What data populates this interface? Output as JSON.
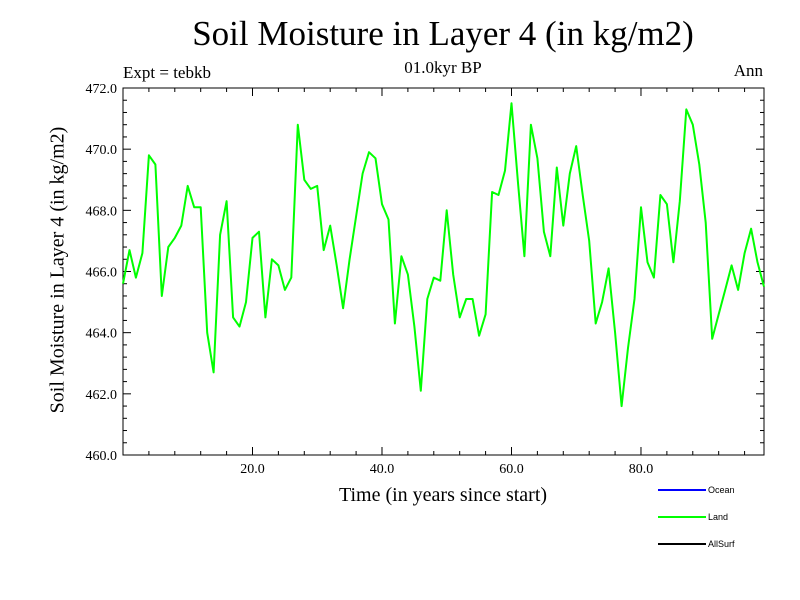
{
  "chart_data": {
    "type": "line",
    "title": "Soil Moisture in Layer 4 (in kg/m2)",
    "subtitle": "01.0kyr BP",
    "expt_label": "Expt = tebkb",
    "season_label": "Ann",
    "xlabel": "Time (in years since start)",
    "ylabel": "Soil Moisture in Layer 4 (in kg/m2)",
    "xlim": [
      0,
      99
    ],
    "ylim": [
      460.0,
      472.0
    ],
    "xticks": [
      20,
      40,
      60,
      80
    ],
    "xtick_labels": [
      "20.0",
      "40.0",
      "60.0",
      "80.0"
    ],
    "yticks": [
      460,
      462,
      464,
      466,
      468,
      470,
      472
    ],
    "ytick_labels": [
      "460.0",
      "462.0",
      "464.0",
      "466.0",
      "468.0",
      "470.0",
      "472.0"
    ],
    "legend": [
      {
        "name": "Ocean",
        "color": "#0000ff"
      },
      {
        "name": "Land",
        "color": "#00ff00"
      },
      {
        "name": "AllSurf",
        "color": "#000000"
      }
    ],
    "series": [
      {
        "name": "Land",
        "color": "#00ff00",
        "x": [
          0,
          1,
          2,
          3,
          4,
          5,
          6,
          7,
          8,
          9,
          10,
          11,
          12,
          13,
          14,
          15,
          16,
          17,
          18,
          19,
          20,
          21,
          22,
          23,
          24,
          25,
          26,
          27,
          28,
          29,
          30,
          31,
          32,
          33,
          34,
          35,
          36,
          37,
          38,
          39,
          40,
          41,
          42,
          43,
          44,
          45,
          46,
          47,
          48,
          49,
          50,
          51,
          52,
          53,
          54,
          55,
          56,
          57,
          58,
          59,
          60,
          61,
          62,
          63,
          64,
          65,
          66,
          67,
          68,
          69,
          70,
          71,
          72,
          73,
          74,
          75,
          76,
          77,
          78,
          79,
          80,
          81,
          82,
          83,
          84,
          85,
          86,
          87,
          88,
          89,
          90,
          91,
          92,
          93,
          94,
          95,
          96,
          97,
          98,
          99
        ],
        "values": [
          465.6,
          466.7,
          465.8,
          466.6,
          469.8,
          469.5,
          465.2,
          466.8,
          467.1,
          467.5,
          468.8,
          468.1,
          468.1,
          464.0,
          462.7,
          467.2,
          468.3,
          464.5,
          464.2,
          465.0,
          467.1,
          467.3,
          464.5,
          466.4,
          466.2,
          465.4,
          465.8,
          470.8,
          469.0,
          468.7,
          468.8,
          466.7,
          467.5,
          466.2,
          464.8,
          466.4,
          467.8,
          469.2,
          469.9,
          469.7,
          468.2,
          467.7,
          464.3,
          466.5,
          465.9,
          464.2,
          462.1,
          465.1,
          465.8,
          465.7,
          468.0,
          465.9,
          464.5,
          465.1,
          465.1,
          463.9,
          464.6,
          468.6,
          468.5,
          469.3,
          471.5,
          468.9,
          466.5,
          470.8,
          469.7,
          467.3,
          466.5,
          469.4,
          467.5,
          469.2,
          470.1,
          468.5,
          467.0,
          464.3,
          465.0,
          466.1,
          464.0,
          461.6,
          463.5,
          465.1,
          468.1,
          466.3,
          465.8,
          468.5,
          468.2,
          466.3,
          468.3,
          471.3,
          470.8,
          469.5,
          467.6,
          463.8,
          464.6,
          465.4,
          466.2,
          465.4,
          466.6,
          467.4,
          466.3,
          465.5
        ]
      }
    ]
  }
}
